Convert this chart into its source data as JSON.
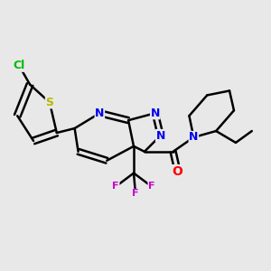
{
  "bg_color": "#e8e8e8",
  "bond_color": "#000000",
  "bond_width": 1.8,
  "fig_width": 3.0,
  "fig_height": 3.0,
  "dpi": 100,
  "atoms": {
    "Cl": {
      "color": "#00bb00"
    },
    "S": {
      "color": "#b8b800"
    },
    "N": {
      "color": "#0000ee"
    },
    "O": {
      "color": "#ff0000"
    },
    "F": {
      "color": "#cc00cc"
    }
  }
}
